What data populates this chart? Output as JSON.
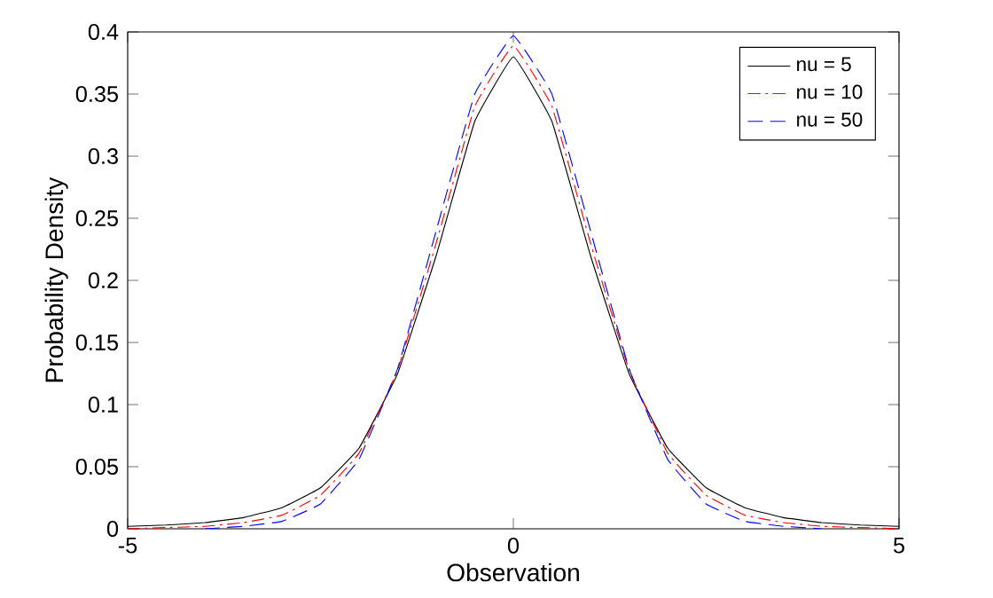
{
  "chart_data": {
    "type": "line",
    "xlabel": "Observation",
    "ylabel": "Probability Density",
    "x": [
      -5,
      -4.5,
      -4,
      -3.5,
      -3,
      -2.5,
      -2,
      -1.5,
      -1,
      -0.5,
      0,
      0.5,
      1,
      1.5,
      2,
      2.5,
      3,
      3.5,
      4,
      4.5,
      5
    ],
    "series": [
      {
        "name": "nu = 5",
        "color": "#000000",
        "line_style": "solid",
        "values": [
          0.002,
          0.003,
          0.005,
          0.009,
          0.017,
          0.033,
          0.065,
          0.125,
          0.22,
          0.328,
          0.38,
          0.328,
          0.22,
          0.125,
          0.065,
          0.033,
          0.017,
          0.009,
          0.005,
          0.003,
          0.002
        ]
      },
      {
        "name": "nu = 10",
        "color": "#ff0000",
        "line_style": "dashdot",
        "values": [
          0,
          0.001,
          0.002,
          0.005,
          0.011,
          0.027,
          0.061,
          0.128,
          0.23,
          0.34,
          0.389,
          0.34,
          0.23,
          0.128,
          0.061,
          0.027,
          0.011,
          0.005,
          0.002,
          0.001,
          0
        ]
      },
      {
        "name": "nu = 50",
        "color": "#0000ff",
        "line_style": "dashed",
        "values": [
          null,
          null,
          0,
          0.002,
          0.006,
          0.02,
          0.056,
          0.129,
          0.24,
          0.35,
          0.397,
          0.35,
          0.24,
          0.129,
          0.056,
          0.02,
          0.006,
          0.002,
          0,
          null,
          null
        ]
      }
    ],
    "xlim": [
      -5,
      5
    ],
    "xticks": [
      -5,
      0,
      5
    ],
    "ylim": [
      0,
      0.4
    ],
    "yticks": [
      0,
      0.05,
      0.1,
      0.15,
      0.2,
      0.25,
      0.3,
      0.35,
      0.4
    ],
    "legend": "top right",
    "grid": false
  }
}
